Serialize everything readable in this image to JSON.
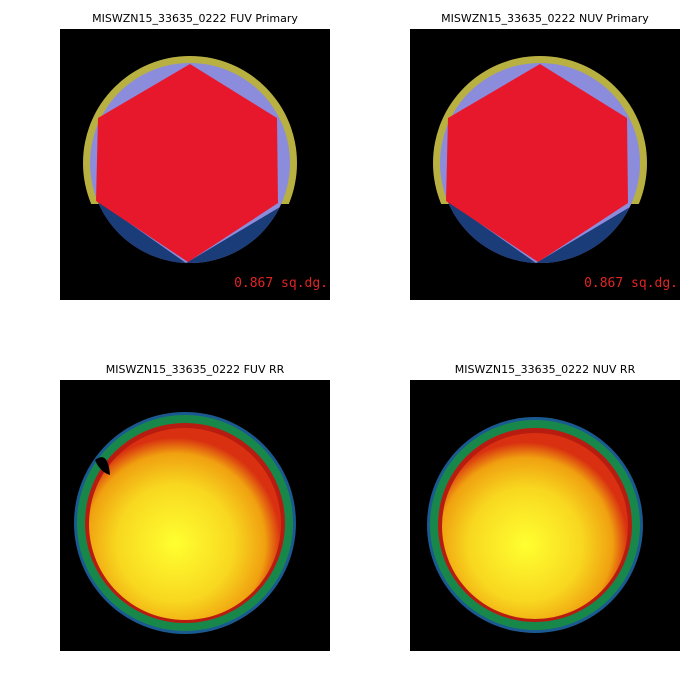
{
  "panels": [
    {
      "kind": "primary",
      "title": "MISWZN15_33635_0222 FUV Primary",
      "annotation": "0.867 sq.dg."
    },
    {
      "kind": "primary",
      "title": "MISWZN15_33635_0222 NUV Primary",
      "annotation": "0.867 sq.dg."
    },
    {
      "kind": "rr",
      "title": "MISWZN15_33635_0222 FUV RR"
    },
    {
      "kind": "rr",
      "title": "MISWZN15_33635_0222 NUV RR"
    }
  ]
}
